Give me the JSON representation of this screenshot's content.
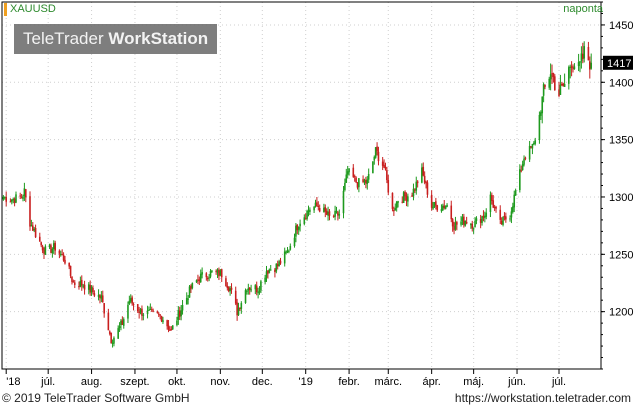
{
  "header": {
    "instrument": "XAUUSD",
    "period": "naponta"
  },
  "logo": {
    "brand": "TeleTrader",
    "product": "WorkStation"
  },
  "footer": {
    "copyright": "© 2019 TeleTrader Software GmbH",
    "url": "https://workstation.teletrader.com"
  },
  "last_price_label": "1417",
  "colors": {
    "up": "#1e9a1e",
    "down": "#c81e1e",
    "grid": "#cfcfcf",
    "axis": "#000000",
    "label_bg": "#000000",
    "label_text": "#ffffff"
  },
  "chart_data": {
    "type": "candlestick",
    "title": "XAUUSD",
    "ylim": [
      1150,
      1470
    ],
    "yticks": [
      1200,
      1250,
      1300,
      1350,
      1400,
      1450
    ],
    "xlim": [
      "2018-05-29",
      "2019-07-31"
    ],
    "x_ticks": [
      {
        "date": "2018-06-01",
        "label": "'18"
      },
      {
        "date": "2018-07-01",
        "label": "júl."
      },
      {
        "date": "2018-08-01",
        "label": "aug."
      },
      {
        "date": "2018-09-01",
        "label": "szept."
      },
      {
        "date": "2018-10-01",
        "label": "okt."
      },
      {
        "date": "2018-11-01",
        "label": "nov."
      },
      {
        "date": "2018-12-01",
        "label": "dec."
      },
      {
        "date": "2019-01-01",
        "label": "'19"
      },
      {
        "date": "2019-02-01",
        "label": "febr."
      },
      {
        "date": "2019-03-01",
        "label": "márc."
      },
      {
        "date": "2019-04-01",
        "label": "ápr."
      },
      {
        "date": "2019-05-01",
        "label": "máj."
      },
      {
        "date": "2019-06-01",
        "label": "jún."
      },
      {
        "date": "2019-07-01",
        "label": "júl."
      }
    ],
    "close_path": [
      [
        "2018-05-30",
        1300
      ],
      [
        "2018-06-05",
        1298
      ],
      [
        "2018-06-12",
        1300
      ],
      [
        "2018-06-14",
        1305
      ],
      [
        "2018-06-18",
        1278
      ],
      [
        "2018-06-26",
        1258
      ],
      [
        "2018-06-29",
        1253
      ],
      [
        "2018-07-06",
        1256
      ],
      [
        "2018-07-13",
        1245
      ],
      [
        "2018-07-19",
        1225
      ],
      [
        "2018-07-26",
        1224
      ],
      [
        "2018-08-01",
        1218
      ],
      [
        "2018-08-08",
        1212
      ],
      [
        "2018-08-15",
        1176
      ],
      [
        "2018-08-17",
        1178
      ],
      [
        "2018-08-23",
        1190
      ],
      [
        "2018-08-28",
        1210
      ],
      [
        "2018-09-05",
        1200
      ],
      [
        "2018-09-12",
        1198
      ],
      [
        "2018-09-20",
        1196
      ],
      [
        "2018-09-27",
        1183
      ],
      [
        "2018-10-03",
        1200
      ],
      [
        "2018-10-11",
        1220
      ],
      [
        "2018-10-17",
        1230
      ],
      [
        "2018-10-26",
        1234
      ],
      [
        "2018-11-02",
        1233
      ],
      [
        "2018-11-08",
        1220
      ],
      [
        "2018-11-13",
        1200
      ],
      [
        "2018-11-20",
        1222
      ],
      [
        "2018-11-28",
        1220
      ],
      [
        "2018-12-04",
        1236
      ],
      [
        "2018-12-12",
        1240
      ],
      [
        "2018-12-19",
        1252
      ],
      [
        "2018-12-27",
        1278
      ],
      [
        "2019-01-04",
        1290
      ],
      [
        "2019-01-10",
        1292
      ],
      [
        "2019-01-18",
        1282
      ],
      [
        "2019-01-25",
        1285
      ],
      [
        "2019-01-31",
        1322
      ],
      [
        "2019-02-07",
        1312
      ],
      [
        "2019-02-14",
        1313
      ],
      [
        "2019-02-20",
        1340
      ],
      [
        "2019-02-26",
        1326
      ],
      [
        "2019-03-04",
        1288
      ],
      [
        "2019-03-08",
        1298
      ],
      [
        "2019-03-18",
        1303
      ],
      [
        "2019-03-25",
        1322
      ],
      [
        "2019-04-01",
        1292
      ],
      [
        "2019-04-05",
        1292
      ],
      [
        "2019-04-12",
        1293
      ],
      [
        "2019-04-17",
        1275
      ],
      [
        "2019-04-25",
        1280
      ],
      [
        "2019-05-01",
        1276
      ],
      [
        "2019-05-09",
        1285
      ],
      [
        "2019-05-13",
        1300
      ],
      [
        "2019-05-20",
        1276
      ],
      [
        "2019-05-27",
        1285
      ],
      [
        "2019-05-31",
        1305
      ],
      [
        "2019-06-06",
        1335
      ],
      [
        "2019-06-13",
        1345
      ],
      [
        "2019-06-20",
        1390
      ],
      [
        "2019-06-25",
        1410
      ],
      [
        "2019-07-01",
        1390
      ],
      [
        "2019-07-05",
        1398
      ],
      [
        "2019-07-10",
        1420
      ],
      [
        "2019-07-15",
        1410
      ],
      [
        "2019-07-19",
        1425
      ],
      [
        "2019-07-24",
        1417
      ]
    ],
    "last_price": 1417,
    "grid": true
  }
}
